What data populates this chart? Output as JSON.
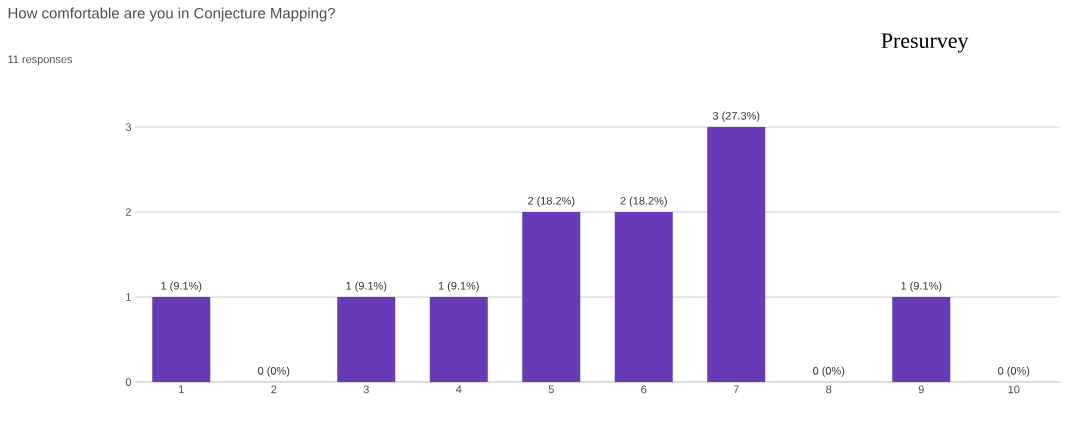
{
  "chart_data": {
    "type": "bar",
    "title": "How comfortable are you in Conjecture Mapping?",
    "subtitle": "11 responses",
    "annotations": [
      "Presurvey"
    ],
    "categories": [
      "1",
      "2",
      "3",
      "4",
      "5",
      "6",
      "7",
      "8",
      "9",
      "10"
    ],
    "values": [
      1,
      0,
      1,
      1,
      2,
      2,
      3,
      0,
      1,
      0
    ],
    "value_labels": [
      "1 (9.1%)",
      "0 (0%)",
      "1 (9.1%)",
      "1 (9.1%)",
      "2 (18.2%)",
      "2 (18.2%)",
      "3 (27.3%)",
      "0 (0%)",
      "1 (9.1%)",
      "0 (0%)"
    ],
    "color": "#673ab7",
    "ylim": [
      0,
      3
    ],
    "yticks": [
      0,
      1,
      2,
      3
    ],
    "grid": "y"
  }
}
